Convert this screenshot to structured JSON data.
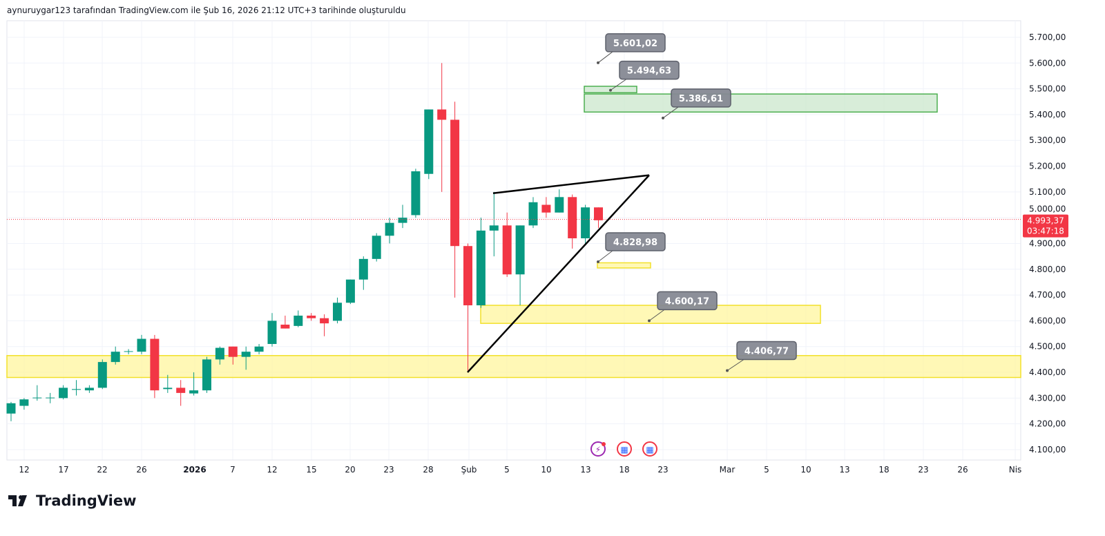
{
  "header": {
    "caption": "aynuruygar123 tarafından TradingView.com ile Şub 16, 2026 21:12 UTC+3 tarihinde oluşturuldu"
  },
  "logo": {
    "text": "TradingView"
  },
  "colors": {
    "up": "#089981",
    "down": "#f23645",
    "zone_yellow": "#fff59d",
    "zone_green": "#c8e6c9",
    "label_bg": "#868993"
  },
  "price_axis": {
    "labels": [
      "5.700,00",
      "5.600,00",
      "5.500,00",
      "5.400,00",
      "5.300,00",
      "5.200,00",
      "5.100,00",
      "5.000,00",
      "4.900,00",
      "4.800,00",
      "4.700,00",
      "4.600,00",
      "4.500,00",
      "4.400,00",
      "4.300,00",
      "4.200,00",
      "4.100,00"
    ],
    "values": [
      5700,
      5600,
      5500,
      5400,
      5300,
      5200,
      5100,
      5000,
      4900,
      4800,
      4700,
      4600,
      4500,
      4400,
      4300,
      4200,
      4100
    ],
    "last_price": "4.993,37",
    "last_price_value": 4993.37,
    "countdown": "03:47:18"
  },
  "time_axis": {
    "labels": [
      "12",
      "17",
      "22",
      "26",
      "2026",
      "7",
      "12",
      "15",
      "20",
      "23",
      "28",
      "Şub",
      "5",
      "10",
      "13",
      "18",
      "23",
      "Mar",
      "5",
      "10",
      "13",
      "18",
      "23",
      "26",
      "Nis"
    ]
  },
  "chart_data": {
    "type": "candlestick",
    "ohlc": [
      [
        4240,
        4285,
        4210,
        4280
      ],
      [
        4270,
        4300,
        4255,
        4295
      ],
      [
        4300,
        4350,
        4290,
        4302
      ],
      [
        4300,
        4320,
        4280,
        4302
      ],
      [
        4300,
        4350,
        4295,
        4340
      ],
      [
        4332,
        4370,
        4310,
        4335
      ],
      [
        4330,
        4350,
        4320,
        4340
      ],
      [
        4340,
        4450,
        4335,
        4440
      ],
      [
        4440,
        4500,
        4430,
        4480
      ],
      [
        4480,
        4490,
        4470,
        4482
      ],
      [
        4480,
        4545,
        4470,
        4530
      ],
      [
        4530,
        4545,
        4300,
        4330
      ],
      [
        4335,
        4390,
        4320,
        4340
      ],
      [
        4340,
        4370,
        4270,
        4320
      ],
      [
        4318,
        4400,
        4310,
        4330
      ],
      [
        4330,
        4460,
        4320,
        4450
      ],
      [
        4450,
        4500,
        4430,
        4495
      ],
      [
        4500,
        4500,
        4430,
        4460
      ],
      [
        4460,
        4500,
        4410,
        4480
      ],
      [
        4480,
        4510,
        4470,
        4500
      ],
      [
        4510,
        4630,
        4500,
        4600
      ],
      [
        4585,
        4620,
        4570,
        4570
      ],
      [
        4580,
        4640,
        4575,
        4620
      ],
      [
        4620,
        4630,
        4600,
        4610
      ],
      [
        4610,
        4625,
        4540,
        4590
      ],
      [
        4600,
        4690,
        4590,
        4670
      ],
      [
        4670,
        4760,
        4665,
        4760
      ],
      [
        4760,
        4850,
        4720,
        4840
      ],
      [
        4840,
        4940,
        4830,
        4930
      ],
      [
        4930,
        5000,
        4900,
        4980
      ],
      [
        4980,
        5050,
        4960,
        5000
      ],
      [
        5010,
        5190,
        5000,
        5180
      ],
      [
        5170,
        5420,
        5150,
        5420
      ],
      [
        5420,
        5600,
        5100,
        5380
      ],
      [
        5380,
        5450,
        4690,
        4890
      ],
      [
        4890,
        4900,
        4400,
        4660
      ],
      [
        4660,
        5000,
        4650,
        4950
      ],
      [
        4950,
        5100,
        4850,
        4970
      ],
      [
        4970,
        5020,
        4770,
        4780
      ],
      [
        4780,
        4970,
        4660,
        4970
      ],
      [
        4970,
        5080,
        4960,
        5060
      ],
      [
        5050,
        5080,
        5000,
        5020
      ],
      [
        5020,
        5110,
        5020,
        5080
      ],
      [
        5080,
        5090,
        4880,
        4920
      ],
      [
        4920,
        5050,
        4900,
        5040
      ],
      [
        5040,
        5040,
        4960,
        4990
      ]
    ],
    "drawings": {
      "price_labels": [
        "5.601,02",
        "5.494,63",
        "5.386,61",
        "4.828,98",
        "4.600,17",
        "4.406,77"
      ],
      "price_label_values": [
        5601.02,
        5494.63,
        5386.61,
        4828.98,
        4600.17,
        4406.77
      ],
      "zones": [
        {
          "kind": "resistance",
          "from": 5410,
          "to": 5480
        },
        {
          "kind": "resistance",
          "from": 5485,
          "to": 5510
        },
        {
          "kind": "support",
          "from": 4805,
          "to": 4825
        },
        {
          "kind": "support",
          "from": 4590,
          "to": 4660
        },
        {
          "kind": "support",
          "from": 4380,
          "to": 4465
        }
      ],
      "wedge": {
        "lower_from": 4400,
        "upper_from": 5095,
        "apex": 5165
      }
    }
  }
}
